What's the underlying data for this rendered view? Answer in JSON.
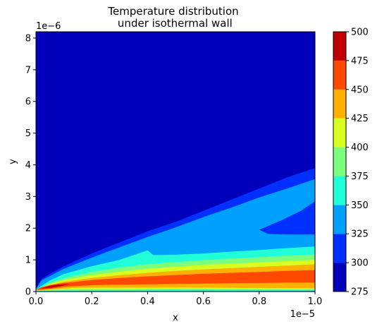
{
  "chart_data": {
    "type": "contourf",
    "title_line1": "Temperature distribution",
    "title_line2": " under isothermal wall",
    "xlabel": "x",
    "ylabel": "y",
    "x_scale_label": "1e−5",
    "y_scale_label": "1e−6",
    "xlim": [
      0.0,
      1.0
    ],
    "ylim": [
      0.0,
      8.2
    ],
    "x_ticks": [
      0.0,
      0.2,
      0.4,
      0.6,
      0.8,
      1.0
    ],
    "x_tick_labels": [
      "0.0",
      "0.2",
      "0.4",
      "0.6",
      "0.8",
      "1.0"
    ],
    "y_ticks": [
      0,
      1,
      2,
      3,
      4,
      5,
      6,
      7,
      8
    ],
    "y_tick_labels": [
      "0",
      "1",
      "2",
      "3",
      "4",
      "5",
      "6",
      "7",
      "8"
    ],
    "colorbar": {
      "levels": [
        275,
        300,
        325,
        350,
        375,
        400,
        425,
        450,
        475,
        500
      ],
      "tick_labels": [
        "275",
        "300",
        "325",
        "350",
        "375",
        "400",
        "425",
        "450",
        "475",
        "500"
      ],
      "colors": [
        "#0000bb",
        "#0030ff",
        "#00a0ff",
        "#20ffd8",
        "#7cff7c",
        "#d8ff20",
        "#ffb000",
        "#ff4800",
        "#c00000"
      ]
    },
    "background_color": "#0000bb",
    "contours": [
      {
        "level": 300,
        "color": "#0030ff",
        "points": [
          [
            0.0,
            0.1
          ],
          [
            0.02,
            0.4
          ],
          [
            0.1,
            0.8
          ],
          [
            0.2,
            1.2
          ],
          [
            0.3,
            1.55
          ],
          [
            0.4,
            1.9
          ],
          [
            0.5,
            2.2
          ],
          [
            0.6,
            2.55
          ],
          [
            0.7,
            2.9
          ],
          [
            0.8,
            3.25
          ],
          [
            0.9,
            3.6
          ],
          [
            1.0,
            3.9
          ],
          [
            1.0,
            0.0
          ],
          [
            0.0,
            0.0
          ]
        ]
      },
      {
        "level": 325,
        "color": "#00a0ff",
        "points": [
          [
            0.0,
            0.08
          ],
          [
            0.02,
            0.35
          ],
          [
            0.1,
            0.72
          ],
          [
            0.2,
            1.07
          ],
          [
            0.3,
            1.4
          ],
          [
            0.4,
            1.72
          ],
          [
            0.5,
            2.02
          ],
          [
            0.6,
            2.35
          ],
          [
            0.7,
            2.65
          ],
          [
            0.8,
            2.97
          ],
          [
            0.9,
            3.25
          ],
          [
            1.0,
            3.55
          ],
          [
            1.0,
            2.85
          ],
          [
            0.95,
            2.55
          ],
          [
            0.88,
            2.25
          ],
          [
            0.8,
            1.95
          ],
          [
            0.83,
            1.82
          ],
          [
            0.9,
            1.8
          ],
          [
            1.0,
            1.8
          ],
          [
            1.0,
            0.0
          ],
          [
            0.0,
            0.0
          ]
        ]
      },
      {
        "level": 350,
        "color": "#20ffd8",
        "points": [
          [
            0.0,
            0.06
          ],
          [
            0.05,
            0.35
          ],
          [
            0.1,
            0.55
          ],
          [
            0.2,
            0.8
          ],
          [
            0.3,
            1.0
          ],
          [
            0.35,
            1.15
          ],
          [
            0.4,
            1.3
          ],
          [
            0.42,
            1.15
          ],
          [
            0.5,
            1.16
          ],
          [
            0.6,
            1.2
          ],
          [
            0.7,
            1.26
          ],
          [
            0.8,
            1.31
          ],
          [
            0.9,
            1.37
          ],
          [
            1.0,
            1.42
          ],
          [
            1.0,
            0.02
          ],
          [
            0.0,
            0.0
          ]
        ]
      },
      {
        "level": 375,
        "color": "#7cff7c",
        "points": [
          [
            0.0,
            0.05
          ],
          [
            0.05,
            0.28
          ],
          [
            0.1,
            0.42
          ],
          [
            0.2,
            0.62
          ],
          [
            0.3,
            0.76
          ],
          [
            0.4,
            0.86
          ],
          [
            0.5,
            0.93
          ],
          [
            0.6,
            0.99
          ],
          [
            0.7,
            1.04
          ],
          [
            0.8,
            1.08
          ],
          [
            0.9,
            1.13
          ],
          [
            1.0,
            1.17
          ],
          [
            1.0,
            0.05
          ],
          [
            0.5,
            0.06
          ],
          [
            0.0,
            0.02
          ]
        ]
      },
      {
        "level": 400,
        "color": "#d8ff20",
        "points": [
          [
            0.0,
            0.05
          ],
          [
            0.05,
            0.24
          ],
          [
            0.1,
            0.36
          ],
          [
            0.2,
            0.52
          ],
          [
            0.3,
            0.63
          ],
          [
            0.4,
            0.72
          ],
          [
            0.5,
            0.78
          ],
          [
            0.6,
            0.84
          ],
          [
            0.7,
            0.88
          ],
          [
            0.8,
            0.92
          ],
          [
            0.9,
            0.96
          ],
          [
            1.0,
            1.0
          ],
          [
            1.0,
            0.07
          ],
          [
            0.5,
            0.09
          ],
          [
            0.1,
            0.07
          ],
          [
            0.0,
            0.03
          ]
        ]
      },
      {
        "level": 425,
        "color": "#ffb000",
        "points": [
          [
            0.0,
            0.05
          ],
          [
            0.05,
            0.21
          ],
          [
            0.1,
            0.31
          ],
          [
            0.2,
            0.43
          ],
          [
            0.3,
            0.52
          ],
          [
            0.4,
            0.59
          ],
          [
            0.5,
            0.65
          ],
          [
            0.6,
            0.7
          ],
          [
            0.7,
            0.74
          ],
          [
            0.8,
            0.78
          ],
          [
            0.9,
            0.82
          ],
          [
            1.0,
            0.86
          ],
          [
            1.0,
            0.1
          ],
          [
            0.5,
            0.13
          ],
          [
            0.15,
            0.12
          ],
          [
            0.0,
            0.04
          ]
        ]
      },
      {
        "level": 450,
        "color": "#ff4800",
        "points": [
          [
            0.0,
            0.05
          ],
          [
            0.02,
            0.14
          ],
          [
            0.05,
            0.2
          ],
          [
            0.1,
            0.27
          ],
          [
            0.2,
            0.36
          ],
          [
            0.3,
            0.43
          ],
          [
            0.4,
            0.48
          ],
          [
            0.5,
            0.52
          ],
          [
            0.6,
            0.56
          ],
          [
            0.7,
            0.59
          ],
          [
            0.8,
            0.62
          ],
          [
            0.9,
            0.65
          ],
          [
            1.0,
            0.68
          ],
          [
            1.0,
            0.28
          ],
          [
            0.9,
            0.28
          ],
          [
            0.8,
            0.27
          ],
          [
            0.7,
            0.26
          ],
          [
            0.6,
            0.25
          ],
          [
            0.5,
            0.24
          ],
          [
            0.4,
            0.23
          ],
          [
            0.3,
            0.22
          ],
          [
            0.2,
            0.2
          ],
          [
            0.1,
            0.15
          ],
          [
            0.05,
            0.08
          ],
          [
            0.02,
            0.06
          ]
        ]
      },
      {
        "level": 475,
        "color": "#c00000",
        "points": [
          [
            0.02,
            0.1
          ],
          [
            0.05,
            0.18
          ],
          [
            0.08,
            0.22
          ],
          [
            0.12,
            0.24
          ],
          [
            0.1,
            0.19
          ],
          [
            0.06,
            0.13
          ],
          [
            0.03,
            0.1
          ]
        ]
      }
    ]
  }
}
